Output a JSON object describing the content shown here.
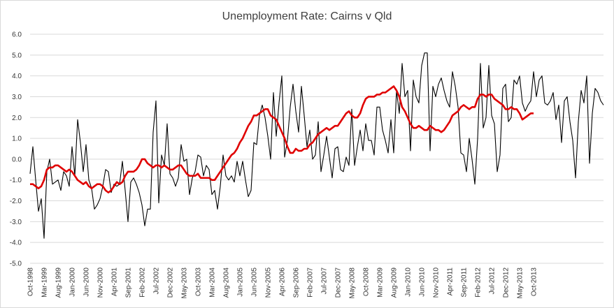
{
  "chart_data": {
    "type": "line",
    "title": "Unemployment Rate: Cairns v Qld",
    "xlabel": "",
    "ylabel": "",
    "ylim": [
      -5.0,
      6.0
    ],
    "ytick_step": 1.0,
    "grid": true,
    "legend": "none",
    "x_start": "Oct-1998",
    "x_tick_labels": [
      "Oct-1998",
      "Mar-1999",
      "Aug-1999",
      "Jan-2000",
      "Jun-2000",
      "Nov-2000",
      "Apr-2001",
      "Sep-2001",
      "Feb-2002",
      "Jul-2002",
      "Dec-2002",
      "May-2003",
      "Oct-2003",
      "Mar-2004",
      "Aug-2004",
      "Jan-2005",
      "Jun-2005",
      "Nov-2005",
      "Apr-2006",
      "Sep-2006",
      "Feb-2007",
      "Jul-2007",
      "Dec-2007",
      "May-2008",
      "Oct-2008",
      "Mar-2009",
      "Aug-2009",
      "Jan-2010",
      "Jun-2010",
      "Nov-2010",
      "Apr-2011",
      "Sep-2011",
      "Feb-2012",
      "Jul-2012",
      "Dec-2012",
      "May-2013",
      "Oct-2013"
    ],
    "series": [
      {
        "color": "#000000",
        "values": [
          -0.7,
          0.6,
          -1.0,
          -2.5,
          -1.9,
          -3.8,
          -0.6,
          0.0,
          -1.2,
          -1.1,
          -1.0,
          -1.5,
          -0.6,
          -0.8,
          -1.3,
          0.6,
          -0.8,
          1.9,
          0.8,
          -0.6,
          0.7,
          -1.0,
          -1.4,
          -2.4,
          -2.2,
          -1.9,
          -1.3,
          -0.5,
          -0.6,
          -1.6,
          -1.2,
          -1.3,
          -1.2,
          -0.1,
          -1.5,
          -3.0,
          -1.1,
          -0.9,
          -1.2,
          -1.6,
          -2.2,
          -3.2,
          -2.4,
          -2.4,
          1.3,
          2.8,
          -2.1,
          0.2,
          -0.3,
          1.7,
          -0.7,
          -0.9,
          -1.3,
          -0.9,
          0.7,
          -0.1,
          0.0,
          -1.7,
          -0.9,
          -0.6,
          0.2,
          0.1,
          -0.8,
          -0.3,
          -0.5,
          -1.7,
          -1.5,
          -2.4,
          -1.3,
          0.2,
          -0.8,
          -1.0,
          -0.8,
          -1.1,
          -0.1,
          -0.8,
          -0.1,
          -1.0,
          -1.8,
          -1.5,
          0.8,
          0.7,
          2.1,
          2.6,
          2.0,
          1.1,
          0.0,
          3.2,
          1.1,
          2.7,
          4.0,
          0.1,
          0.9,
          2.5,
          3.6,
          2.3,
          1.3,
          3.5,
          2.1,
          0.6,
          1.4,
          0.0,
          0.2,
          1.8,
          -0.6,
          0.2,
          1.1,
          0.1,
          -0.9,
          0.5,
          0.6,
          -0.5,
          -0.6,
          0.1,
          -0.3,
          2.4,
          -0.3,
          0.6,
          1.4,
          0.4,
          1.7,
          0.9,
          0.9,
          0.2,
          2.5,
          2.5,
          1.4,
          0.9,
          0.3,
          1.9,
          0.3,
          3.3,
          2.2,
          4.6,
          3.0,
          3.3,
          0.4,
          3.8,
          3.0,
          2.7,
          4.5,
          5.1,
          5.1,
          0.4,
          3.5,
          3.0,
          3.6,
          3.9,
          3.3,
          2.8,
          2.5,
          4.2,
          3.5,
          2.5,
          0.3,
          0.2,
          -0.6,
          1.0,
          0.0,
          -1.2,
          1.0,
          4.6,
          1.5,
          2.0,
          4.5,
          2.1,
          1.7,
          -0.6,
          0.2,
          3.4,
          3.6,
          1.8,
          2.0,
          3.8,
          3.6,
          4.0,
          2.7,
          2.3,
          2.6,
          2.8,
          4.2,
          3.0,
          3.8,
          4.0,
          2.7,
          2.6,
          2.8,
          3.2,
          1.9,
          2.6,
          0.8,
          2.8,
          3.0,
          1.8,
          0.9,
          -0.9,
          1.8,
          3.3,
          2.7,
          4.0,
          -0.2,
          2.2,
          3.4,
          3.2,
          2.8,
          2.6
        ]
      },
      {
        "color": "#e00000",
        "values": [
          -1.2,
          -1.2,
          -1.3,
          -1.4,
          -1.3,
          -1.0,
          -0.5,
          -0.4,
          -0.4,
          -0.3,
          -0.3,
          -0.4,
          -0.5,
          -0.6,
          -0.5,
          -0.6,
          -0.8,
          -1.0,
          -1.1,
          -1.2,
          -1.1,
          -1.3,
          -1.4,
          -1.3,
          -1.2,
          -1.2,
          -1.3,
          -1.5,
          -1.6,
          -1.5,
          -1.3,
          -1.1,
          -1.2,
          -1.1,
          -0.8,
          -0.6,
          -0.6,
          -0.6,
          -0.5,
          -0.3,
          0.0,
          0.0,
          -0.2,
          -0.3,
          -0.4,
          -0.3,
          -0.3,
          -0.4,
          -0.3,
          -0.4,
          -0.5,
          -0.5,
          -0.4,
          -0.3,
          -0.3,
          -0.5,
          -0.7,
          -0.8,
          -0.8,
          -0.8,
          -0.7,
          -0.9,
          -0.9,
          -0.9,
          -0.9,
          -1.0,
          -1.0,
          -0.8,
          -0.6,
          -0.4,
          -0.2,
          0.0,
          0.2,
          0.3,
          0.5,
          0.8,
          1.0,
          1.3,
          1.6,
          1.8,
          2.1,
          2.1,
          2.2,
          2.3,
          2.4,
          2.4,
          2.1,
          2.0,
          1.9,
          1.6,
          1.3,
          1.0,
          0.6,
          0.3,
          0.3,
          0.5,
          0.4,
          0.4,
          0.5,
          0.5,
          0.7,
          0.8,
          1.0,
          1.2,
          1.3,
          1.4,
          1.5,
          1.4,
          1.5,
          1.6,
          1.6,
          1.8,
          2.0,
          2.2,
          2.3,
          2.1,
          2.0,
          2.0,
          2.2,
          2.6,
          2.9,
          3.0,
          3.0,
          3.0,
          3.1,
          3.1,
          3.2,
          3.2,
          3.3,
          3.4,
          3.5,
          3.3,
          3.0,
          2.5,
          2.3,
          2.0,
          1.7,
          1.5,
          1.5,
          1.6,
          1.5,
          1.4,
          1.4,
          1.6,
          1.5,
          1.4,
          1.4,
          1.3,
          1.4,
          1.6,
          1.8,
          2.1,
          2.2,
          2.3,
          2.5,
          2.6,
          2.5,
          2.4,
          2.5,
          2.5,
          2.9,
          3.1,
          3.1,
          3.0,
          3.1,
          3.1,
          2.9,
          2.8,
          2.7,
          2.6,
          2.4,
          2.4,
          2.5,
          2.4,
          2.4,
          2.2,
          1.9,
          2.0,
          2.1,
          2.2,
          2.2
        ]
      }
    ]
  }
}
